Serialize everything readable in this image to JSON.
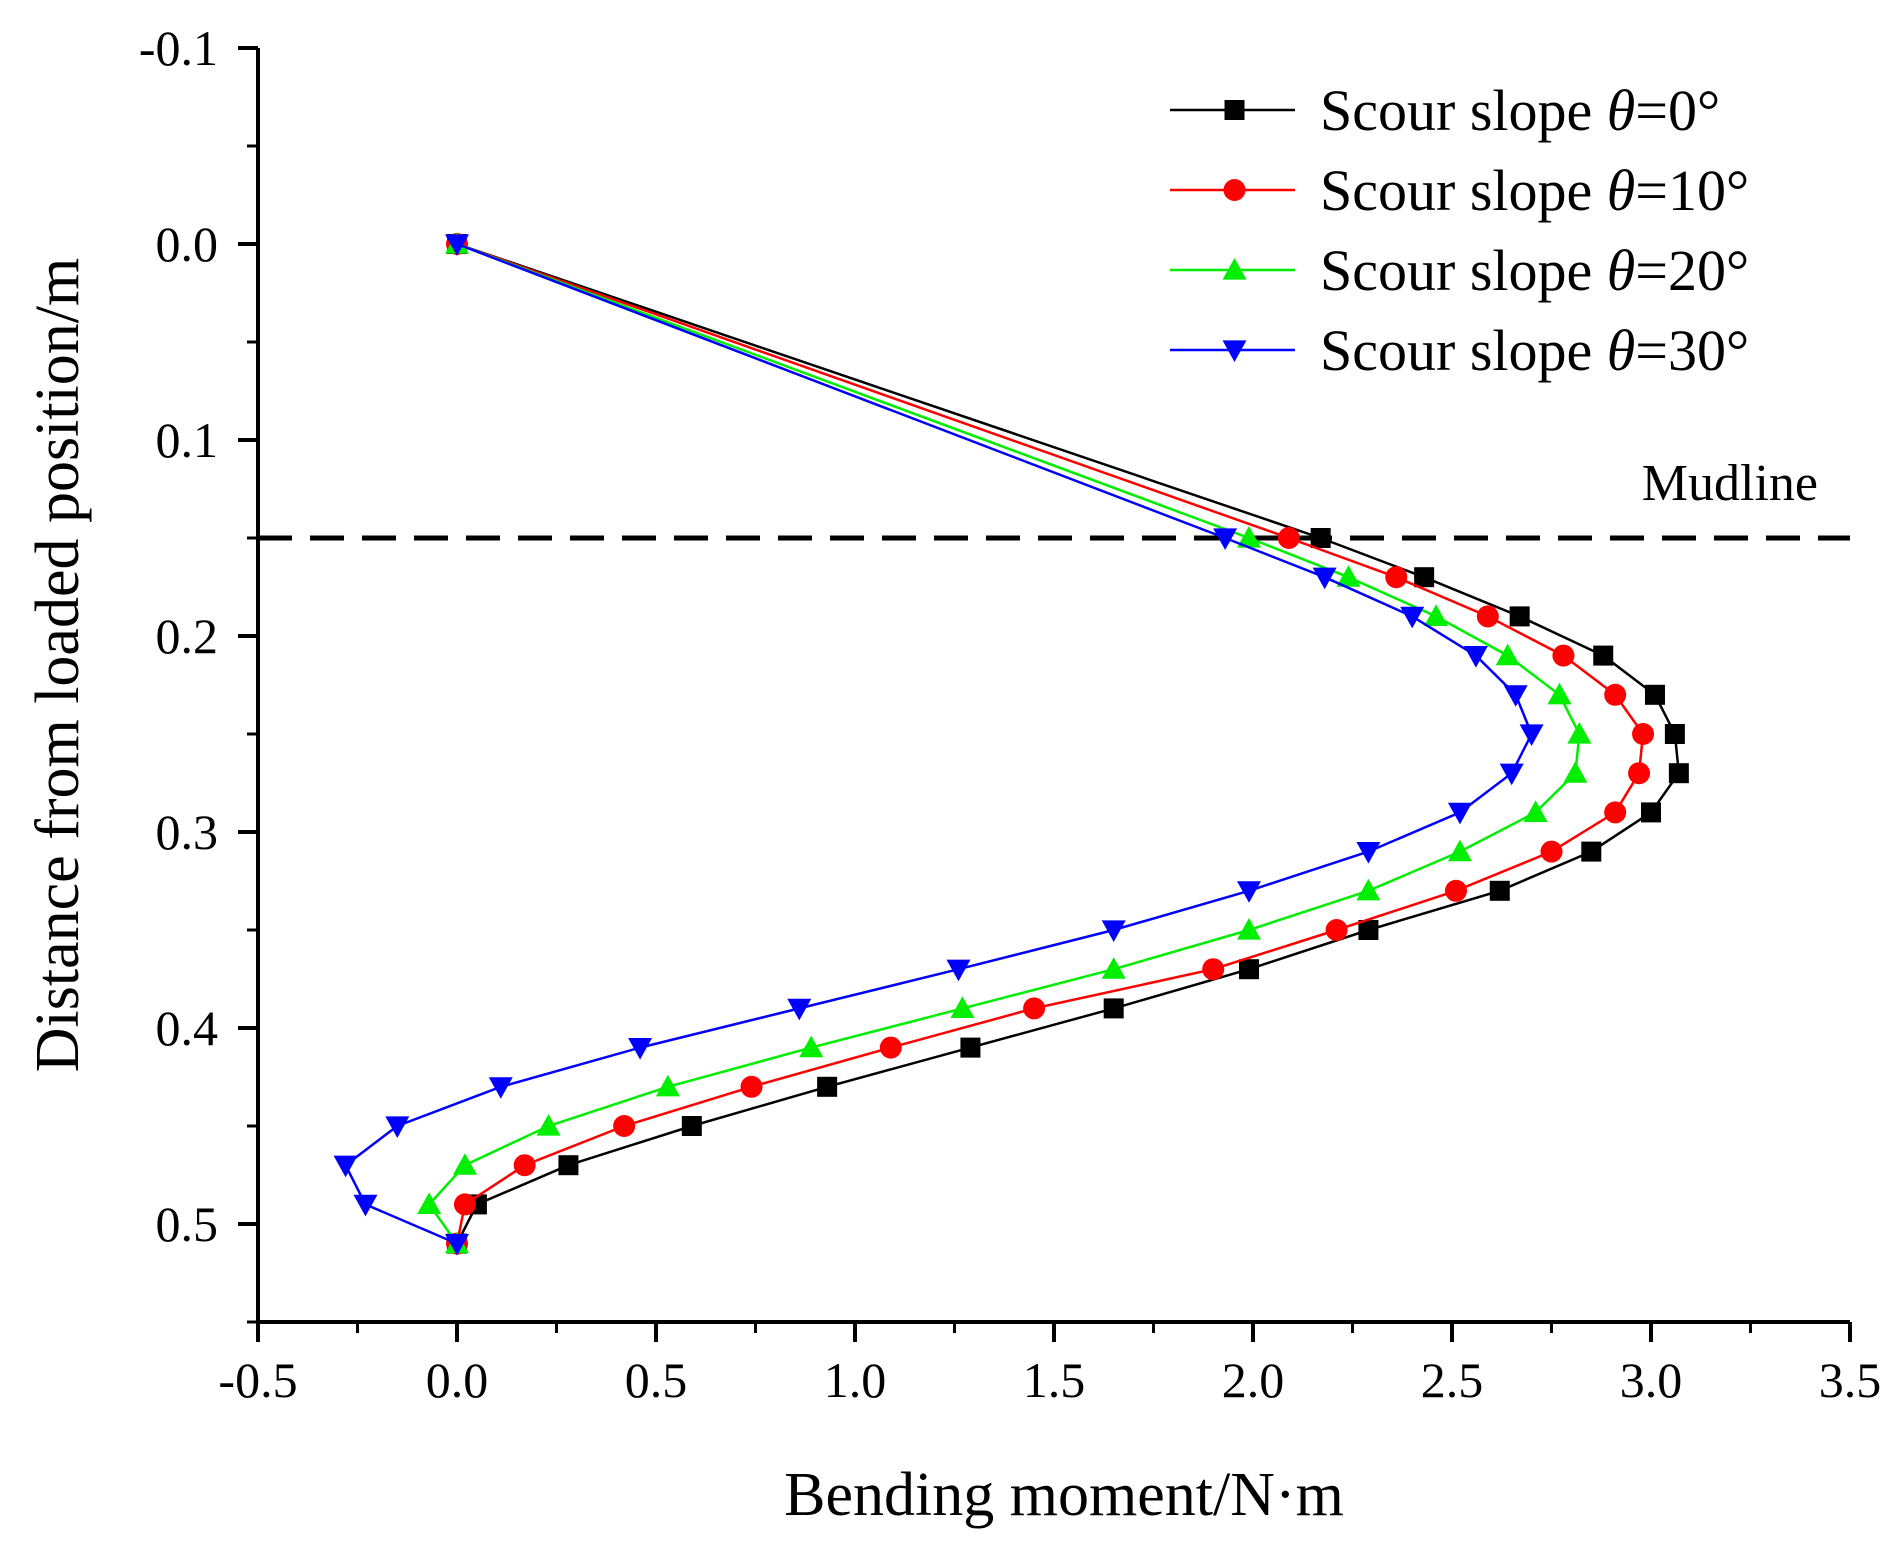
{
  "chart_data": {
    "type": "line",
    "title": "",
    "xlabel": "Bending moment/N·m",
    "ylabel": "Distance from loaded position/m",
    "xlim": [
      -0.5,
      3.5
    ],
    "ylim": [
      -0.1,
      0.55
    ],
    "y_inverted": true,
    "xticks": [
      "-0.5",
      "0.0",
      "0.5",
      "1.0",
      "1.5",
      "2.0",
      "2.5",
      "3.0",
      "3.5"
    ],
    "yticks": [
      "-0.1",
      "0.0",
      "0.1",
      "0.2",
      "0.3",
      "0.4",
      "0.5"
    ],
    "grid": false,
    "legend_position": "top-right",
    "annotations": [
      {
        "text": "Mudline",
        "y": 0.15,
        "style": "dashed-horizontal-line"
      }
    ],
    "series": [
      {
        "name": "Scour slope θ=0°",
        "label_prefix": "Scour slope ",
        "label_symbol": "θ",
        "label_suffix": "=0°",
        "color": "#000000",
        "marker": "square",
        "y": [
          0.0,
          0.15,
          0.17,
          0.19,
          0.21,
          0.23,
          0.25,
          0.27,
          0.29,
          0.31,
          0.33,
          0.35,
          0.37,
          0.39,
          0.41,
          0.43,
          0.45,
          0.47,
          0.49,
          0.51
        ],
        "x": [
          0.0,
          2.17,
          2.43,
          2.67,
          2.88,
          3.01,
          3.06,
          3.07,
          3.0,
          2.85,
          2.62,
          2.29,
          1.99,
          1.65,
          1.29,
          0.93,
          0.59,
          0.28,
          0.05,
          0.0
        ]
      },
      {
        "name": "Scour slope θ=10°",
        "label_prefix": "Scour slope ",
        "label_symbol": "θ",
        "label_suffix": "=10°",
        "color": "#ff0000",
        "marker": "circle",
        "y": [
          0.0,
          0.15,
          0.17,
          0.19,
          0.21,
          0.23,
          0.25,
          0.27,
          0.29,
          0.31,
          0.33,
          0.35,
          0.37,
          0.39,
          0.41,
          0.43,
          0.45,
          0.47,
          0.49,
          0.51
        ],
        "x": [
          0.0,
          2.09,
          2.36,
          2.59,
          2.78,
          2.91,
          2.98,
          2.97,
          2.91,
          2.75,
          2.51,
          2.21,
          1.9,
          1.45,
          1.09,
          0.74,
          0.42,
          0.17,
          0.02,
          0.0
        ]
      },
      {
        "name": "Scour slope θ=20°",
        "label_prefix": "Scour slope ",
        "label_symbol": "θ",
        "label_suffix": "=20°",
        "color": "#00ee00",
        "marker": "triangle-up",
        "y": [
          0.0,
          0.15,
          0.17,
          0.19,
          0.21,
          0.23,
          0.25,
          0.27,
          0.29,
          0.31,
          0.33,
          0.35,
          0.37,
          0.39,
          0.41,
          0.43,
          0.45,
          0.47,
          0.49,
          0.51
        ],
        "x": [
          0.0,
          1.99,
          2.24,
          2.46,
          2.64,
          2.77,
          2.82,
          2.81,
          2.71,
          2.52,
          2.29,
          1.99,
          1.65,
          1.27,
          0.89,
          0.53,
          0.23,
          0.02,
          -0.07,
          0.0
        ]
      },
      {
        "name": "Scour slope θ=30°",
        "label_prefix": "Scour slope ",
        "label_symbol": "θ",
        "label_suffix": "=30°",
        "color": "#0000ff",
        "marker": "triangle-down",
        "y": [
          0.0,
          0.15,
          0.17,
          0.19,
          0.21,
          0.23,
          0.25,
          0.27,
          0.29,
          0.31,
          0.33,
          0.35,
          0.37,
          0.39,
          0.41,
          0.43,
          0.45,
          0.47,
          0.49,
          0.51
        ],
        "x": [
          0.0,
          1.93,
          2.18,
          2.4,
          2.56,
          2.66,
          2.7,
          2.65,
          2.52,
          2.29,
          1.99,
          1.65,
          1.26,
          0.86,
          0.46,
          0.11,
          -0.15,
          -0.28,
          -0.23,
          0.0
        ]
      }
    ]
  }
}
